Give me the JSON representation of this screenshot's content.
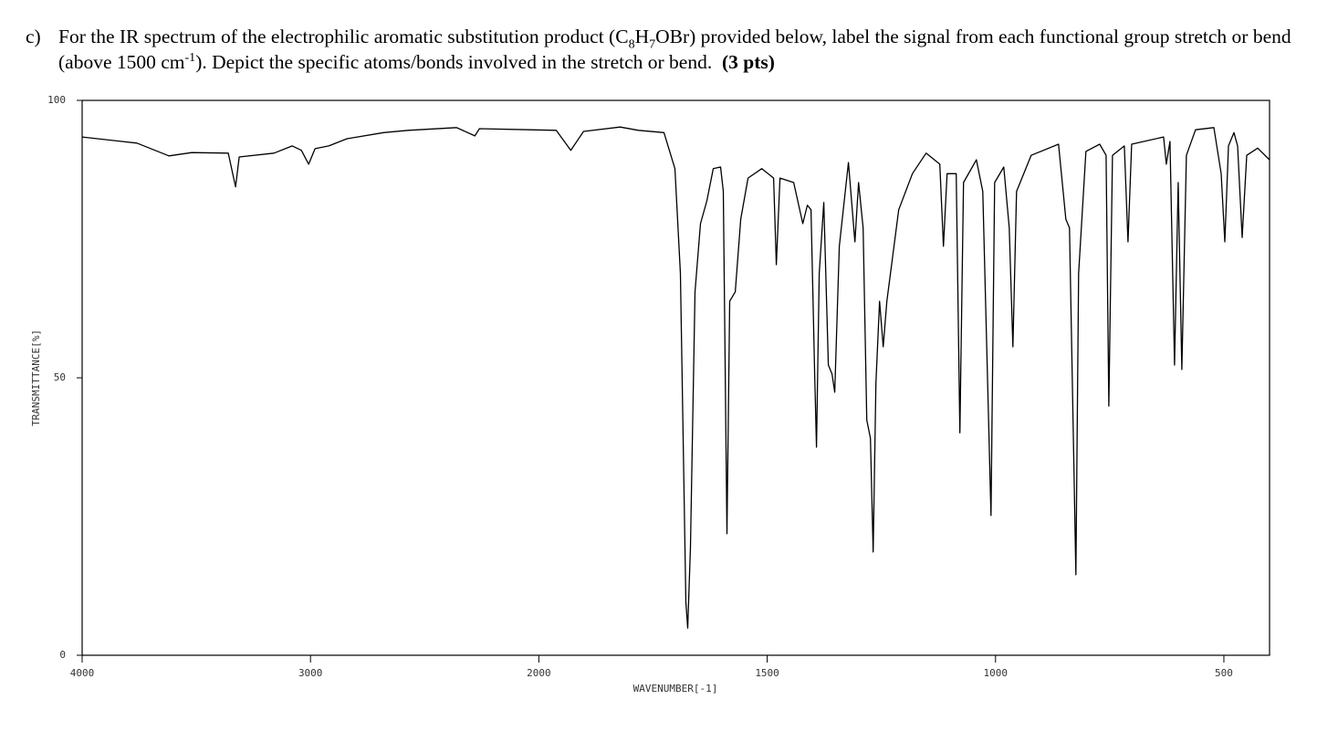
{
  "question": {
    "label": "c)",
    "parts": [
      "For the IR spectrum of the electrophilic aromatic substitution product (C",
      "8",
      "H",
      "7",
      "OBr) provided below, label the signal from each functional group stretch or bend (above 1500 cm",
      "-1",
      "). Depict the specific atoms/bonds involved in the stretch or bend.",
      "(3 pts)"
    ]
  },
  "chart_data": {
    "type": "line",
    "xlabel": "WAVENUMBER[-1]",
    "ylabel": "TRANSMITTANCE[%]",
    "xlim": [
      4000,
      400
    ],
    "xbreak": 2000,
    "xticks": [
      4000,
      3000,
      2000,
      1500,
      1000,
      500
    ],
    "ylim": [
      0,
      100
    ],
    "yticks": [
      0,
      50,
      100
    ],
    "color": "#000000",
    "x": [
      4000,
      3760,
      3620,
      3520,
      3360,
      3328,
      3312,
      3160,
      3080,
      3040,
      3008,
      2980,
      2920,
      2840,
      2680,
      2572,
      2360,
      2280,
      2260,
      2040,
      1962,
      1930,
      1902,
      1822,
      1782,
      1726,
      1702,
      1690,
      1678,
      1674,
      1668,
      1658,
      1646,
      1632,
      1618,
      1602,
      1596,
      1588,
      1582,
      1570,
      1558,
      1542,
      1512,
      1486,
      1480,
      1472,
      1442,
      1422,
      1412,
      1404,
      1396,
      1392,
      1386,
      1376,
      1366,
      1358,
      1352,
      1342,
      1322,
      1308,
      1300,
      1290,
      1282,
      1274,
      1268,
      1262,
      1254,
      1246,
      1238,
      1212,
      1182,
      1152,
      1122,
      1114,
      1106,
      1086,
      1078,
      1070,
      1042,
      1028,
      1010,
      1002,
      982,
      970,
      962,
      954,
      922,
      862,
      846,
      838,
      828,
      824,
      818,
      802,
      772,
      758,
      752,
      744,
      718,
      710,
      702,
      632,
      626,
      618,
      608,
      600,
      592,
      582,
      562,
      522,
      506,
      498,
      490,
      478,
      470,
      460,
      450,
      426,
      400
    ],
    "values": [
      93.4,
      92.3,
      90.0,
      90.6,
      90.5,
      84.4,
      89.8,
      90.5,
      91.8,
      91.0,
      88.5,
      91.3,
      91.8,
      93.1,
      94.2,
      94.6,
      95.1,
      93.6,
      94.9,
      94.7,
      94.6,
      91.0,
      94.4,
      95.2,
      94.6,
      94.2,
      87.7,
      68.8,
      9.5,
      4.9,
      19.4,
      65.5,
      77.8,
      81.9,
      87.7,
      88.0,
      83.6,
      21.9,
      63.8,
      65.5,
      78.6,
      86.0,
      87.7,
      86.0,
      70.4,
      86.0,
      85.2,
      77.8,
      81.1,
      80.3,
      50.7,
      37.5,
      68.8,
      81.6,
      52.3,
      50.7,
      47.4,
      73.7,
      88.8,
      74.5,
      85.2,
      77.0,
      42.4,
      39.1,
      18.6,
      49.0,
      63.8,
      55.6,
      63.8,
      80.3,
      86.8,
      90.5,
      88.5,
      73.7,
      86.8,
      86.8,
      40.1,
      85.2,
      89.3,
      83.6,
      25.2,
      85.2,
      88.0,
      77.0,
      55.6,
      83.6,
      90.1,
      92.1,
      78.6,
      77.0,
      32.6,
      14.5,
      68.8,
      90.8,
      92.1,
      90.1,
      44.9,
      90.1,
      91.8,
      74.5,
      92.1,
      93.4,
      88.5,
      92.6,
      52.3,
      85.2,
      51.5,
      90.1,
      94.7,
      95.1,
      86.8,
      74.5,
      91.8,
      94.2,
      91.8,
      75.3,
      90.1,
      91.4,
      89.3
    ]
  }
}
